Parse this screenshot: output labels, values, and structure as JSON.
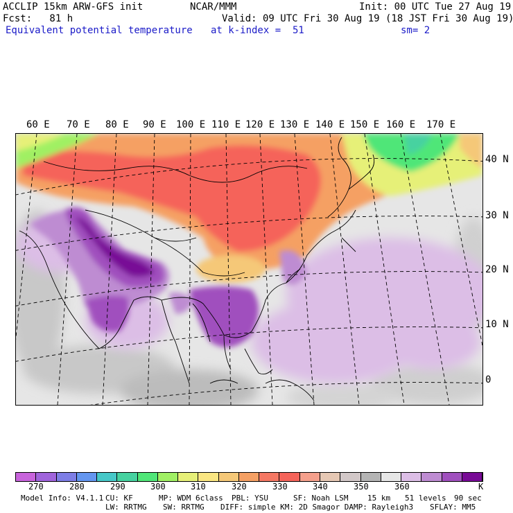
{
  "header": {
    "line1_left": "ACCLIP 15km ARW-GFS init",
    "line1_mid": "NCAR/MMM",
    "line1_right": "Init: 00 UTC Tue 27 Aug 19",
    "line2_left": "Fcst:   81 h",
    "line2_right": "Valid: 09 UTC Fri 30 Aug 19 (18 JST Fri 30 Aug 19)",
    "field_name": "Equivalent potential temperature",
    "level": "at k-index =  51",
    "smoothing": "sm= 2"
  },
  "map": {
    "lon_labels": [
      "60 E",
      "70 E",
      "80 E",
      "90 E",
      "100 E",
      "110 E",
      "120 E",
      "130 E",
      "140 E",
      "150 E",
      "160 E",
      "170 E"
    ],
    "lat_labels": [
      "40 N",
      "30 N",
      "20 N",
      "10 N",
      "0"
    ]
  },
  "colorbar": {
    "colors": [
      "#c864dc",
      "#a064dc",
      "#7e7ee6",
      "#6496f0",
      "#46c8c8",
      "#46d2a0",
      "#50e678",
      "#a0f064",
      "#e6f078",
      "#fae682",
      "#f5c878",
      "#f5a064",
      "#f57864",
      "#f5645a",
      "#f5a08c",
      "#e6c8b4",
      "#d2c8c8",
      "#b4b4b4",
      "#e6e6e6",
      "#dcbee6",
      "#be8cd2",
      "#a050be",
      "#780a96"
    ],
    "ticks": [
      "270",
      "280",
      "290",
      "300",
      "310",
      "320",
      "330",
      "340",
      "350",
      "360"
    ],
    "unit": "K"
  },
  "footer": {
    "model_info": "Model Info: V4.1.1",
    "cu": "CU: KF",
    "mp": "MP: WDM 6class",
    "pbl": "PBL: YSU",
    "sf": "SF: Noah LSM",
    "res": "15 km",
    "levels": "51 levels",
    "dt": "90 sec",
    "lw": "LW: RRTMG",
    "sw": "SW: RRTMG",
    "diff": "DIFF: simple KM: 2D Smagor DAMP: Rayleigh3",
    "sflay": "SFLAY: MM5"
  }
}
